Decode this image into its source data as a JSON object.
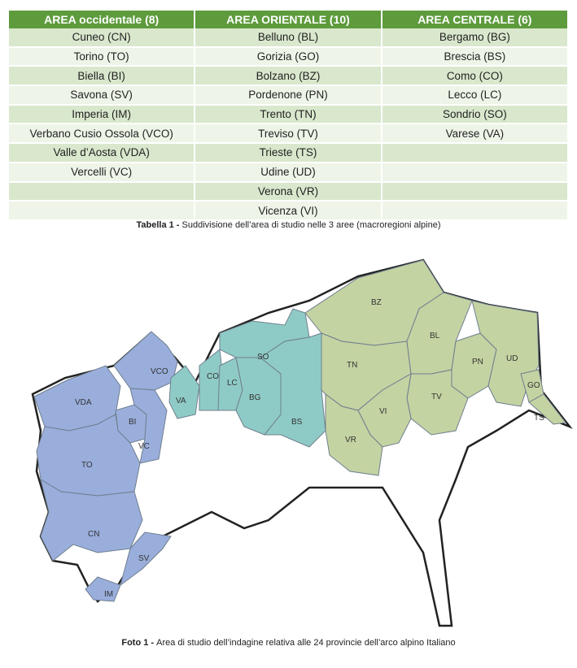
{
  "table": {
    "headers": [
      "AREA occidentale (8)",
      "AREA ORIENTALE (10)",
      "AREA CENTRALE (6)"
    ],
    "rows": [
      [
        "Cuneo (CN)",
        "Belluno (BL)",
        "Bergamo (BG)"
      ],
      [
        "Torino (TO)",
        "Gorizia (GO)",
        "Brescia (BS)"
      ],
      [
        "Biella (BI)",
        "Bolzano (BZ)",
        "Como (CO)"
      ],
      [
        "Savona (SV)",
        "Pordenone (PN)",
        "Lecco (LC)"
      ],
      [
        "Imperia (IM)",
        "Trento (TN)",
        "Sondrio (SO)"
      ],
      [
        "Verbano Cusio Ossola (VCO)",
        "Treviso (TV)",
        "Varese (VA)"
      ],
      [
        "Valle d’Aosta (VDA)",
        "Trieste (TS)",
        ""
      ],
      [
        "Vercelli (VC)",
        "Udine (UD)",
        ""
      ],
      [
        "",
        "Verona (VR)",
        ""
      ],
      [
        "",
        "Vicenza (VI)",
        ""
      ]
    ]
  },
  "caption1": {
    "bold": "Tabella 1 - ",
    "text": "Suddivisione dell’area di studio nelle 3 aree (macroregioni alpine)"
  },
  "map": {
    "colors": {
      "west": "#9aaedc",
      "central": "#8fcbc6",
      "east": "#c4d3a2",
      "other": "#ffffff",
      "border": "#222222"
    },
    "labels": {
      "vco": "VCO",
      "vda": "VDA",
      "bi": "BI",
      "vc": "VC",
      "to": "TO",
      "cn": "CN",
      "sv": "SV",
      "im": "IM",
      "va": "VA",
      "co": "CO",
      "lc": "LC",
      "so": "SO",
      "bg": "BG",
      "bs": "BS",
      "bz": "BZ",
      "tn": "TN",
      "bl": "BL",
      "pn": "PN",
      "ud": "UD",
      "go": "GO",
      "ts": "TS",
      "tv": "TV",
      "vi": "VI",
      "vr": "VR"
    }
  },
  "caption2": {
    "bold": "Foto 1 - ",
    "text": "Area di studio dell’indagine relativa alle 24 provincie dell’arco alpino Italiano"
  }
}
